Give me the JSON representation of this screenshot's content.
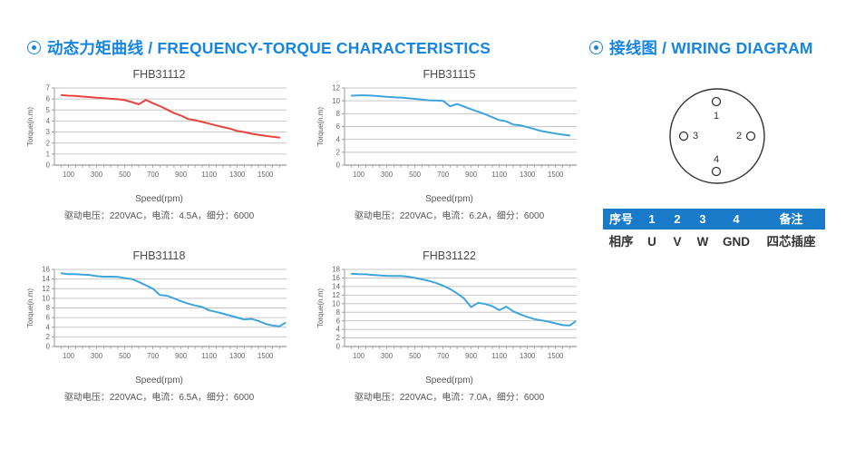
{
  "page": {
    "background": "#ffffff",
    "accent": "#1585e0"
  },
  "headers": {
    "left": {
      "icon": "circle-dot-icon",
      "text": "动态力矩曲线 / FREQUENCY-TORQUE CHARACTERISTICS"
    },
    "right": {
      "icon": "circle-dot-icon",
      "text": "接线图 / WIRING DIAGRAM"
    }
  },
  "chart_data": [
    {
      "type": "line",
      "title": "FHB31112",
      "ylabel": "Torque(n.m)",
      "xlabel": "Speed(rpm)",
      "caption": "驱动电压：220VAC，电流：4.5A，细分：6000",
      "color": "#e8443f",
      "ylim": [
        0,
        7
      ],
      "ytick": 1,
      "xlim": [
        0,
        1650
      ],
      "xticks": [
        100,
        300,
        500,
        700,
        900,
        1100,
        1300,
        1500
      ],
      "grid": true,
      "legend": "none",
      "x": [
        50,
        100,
        150,
        200,
        250,
        300,
        350,
        400,
        450,
        500,
        550,
        600,
        650,
        700,
        750,
        800,
        850,
        900,
        950,
        1000,
        1050,
        1100,
        1150,
        1200,
        1250,
        1300,
        1350,
        1400,
        1450,
        1500,
        1550,
        1600
      ],
      "y": [
        6.35,
        6.3,
        6.28,
        6.22,
        6.18,
        6.12,
        6.08,
        6.02,
        5.98,
        5.9,
        5.72,
        5.52,
        5.92,
        5.62,
        5.35,
        5.05,
        4.72,
        4.5,
        4.18,
        4.08,
        3.92,
        3.76,
        3.6,
        3.45,
        3.3,
        3.1,
        3.0,
        2.85,
        2.75,
        2.65,
        2.57,
        2.5
      ]
    },
    {
      "type": "line",
      "title": "FHB31115",
      "ylabel": "Torque(n.m)",
      "xlabel": "Speed(rpm)",
      "caption": "驱动电压：220VAC，电流：6.2A，细分：6000",
      "color": "#3fa4dc",
      "ylim": [
        0,
        12
      ],
      "ytick": 2,
      "xlim": [
        0,
        1650
      ],
      "xticks": [
        100,
        300,
        500,
        700,
        900,
        1100,
        1300,
        1500
      ],
      "grid": true,
      "legend": "none",
      "x": [
        50,
        100,
        150,
        200,
        250,
        300,
        350,
        400,
        450,
        500,
        550,
        600,
        650,
        700,
        750,
        800,
        850,
        900,
        950,
        1000,
        1050,
        1100,
        1150,
        1200,
        1250,
        1300,
        1350,
        1400,
        1450,
        1500,
        1550,
        1600
      ],
      "y": [
        10.8,
        10.85,
        10.85,
        10.8,
        10.72,
        10.62,
        10.55,
        10.5,
        10.42,
        10.3,
        10.2,
        10.08,
        10.05,
        10.0,
        9.15,
        9.5,
        9.1,
        8.7,
        8.3,
        7.9,
        7.45,
        7.0,
        6.8,
        6.3,
        6.2,
        5.9,
        5.6,
        5.3,
        5.1,
        4.9,
        4.75,
        4.6
      ]
    },
    {
      "type": "line",
      "title": "FHB31118",
      "ylabel": "Torque(n.m)",
      "xlabel": "Speed(rpm)",
      "caption": "驱动电压：220VAC，电流：6.5A，细分：6000",
      "color": "#3fa4dc",
      "ylim": [
        0,
        16
      ],
      "ytick": 2,
      "xlim": [
        0,
        1650
      ],
      "xticks": [
        100,
        300,
        500,
        700,
        900,
        1100,
        1300,
        1500
      ],
      "grid": true,
      "legend": "none",
      "x": [
        50,
        100,
        150,
        200,
        250,
        300,
        350,
        400,
        450,
        500,
        550,
        600,
        650,
        700,
        750,
        800,
        850,
        900,
        950,
        1000,
        1050,
        1100,
        1150,
        1200,
        1250,
        1300,
        1350,
        1400,
        1450,
        1500,
        1550,
        1600,
        1640
      ],
      "y": [
        15.2,
        15.0,
        15.0,
        14.9,
        14.85,
        14.6,
        14.5,
        14.5,
        14.45,
        14.2,
        14.0,
        13.4,
        12.7,
        12.0,
        10.7,
        10.55,
        10.0,
        9.4,
        8.9,
        8.5,
        8.2,
        7.5,
        7.2,
        6.8,
        6.4,
        6.0,
        5.6,
        5.75,
        5.3,
        4.7,
        4.35,
        4.2,
        4.9
      ]
    },
    {
      "type": "line",
      "title": "FHB31122",
      "ylabel": "Torque(n.m)",
      "xlabel": "Speed(rpm)",
      "caption": "驱动电压：220VAC，电流：7.0A，细分：6000",
      "color": "#3fa4dc",
      "ylim": [
        0,
        18
      ],
      "ytick": 2,
      "xlim": [
        0,
        1650
      ],
      "xticks": [
        100,
        300,
        500,
        700,
        900,
        1100,
        1300,
        1500
      ],
      "grid": true,
      "legend": "none",
      "x": [
        50,
        100,
        150,
        200,
        250,
        300,
        350,
        400,
        450,
        500,
        550,
        600,
        650,
        700,
        750,
        800,
        850,
        900,
        950,
        1000,
        1050,
        1100,
        1150,
        1200,
        1250,
        1300,
        1350,
        1400,
        1450,
        1500,
        1550,
        1600,
        1640
      ],
      "y": [
        17.0,
        16.9,
        16.85,
        16.7,
        16.6,
        16.5,
        16.45,
        16.45,
        16.3,
        16.0,
        15.7,
        15.3,
        14.85,
        14.2,
        13.4,
        12.4,
        11.2,
        9.2,
        10.2,
        9.9,
        9.4,
        8.5,
        9.3,
        8.2,
        7.5,
        6.9,
        6.4,
        6.1,
        5.8,
        5.4,
        5.0,
        4.9,
        5.8
      ]
    }
  ],
  "wiring": {
    "pins": [
      {
        "id": "1",
        "position": "top"
      },
      {
        "id": "2",
        "position": "right"
      },
      {
        "id": "3",
        "position": "left"
      },
      {
        "id": "4",
        "position": "bottom"
      }
    ]
  },
  "table": {
    "header_bg": "#187ac9",
    "header": [
      "序号",
      "1",
      "2",
      "3",
      "4",
      "备注"
    ],
    "row": [
      "相序",
      "U",
      "V",
      "W",
      "GND",
      "四芯插座"
    ]
  }
}
